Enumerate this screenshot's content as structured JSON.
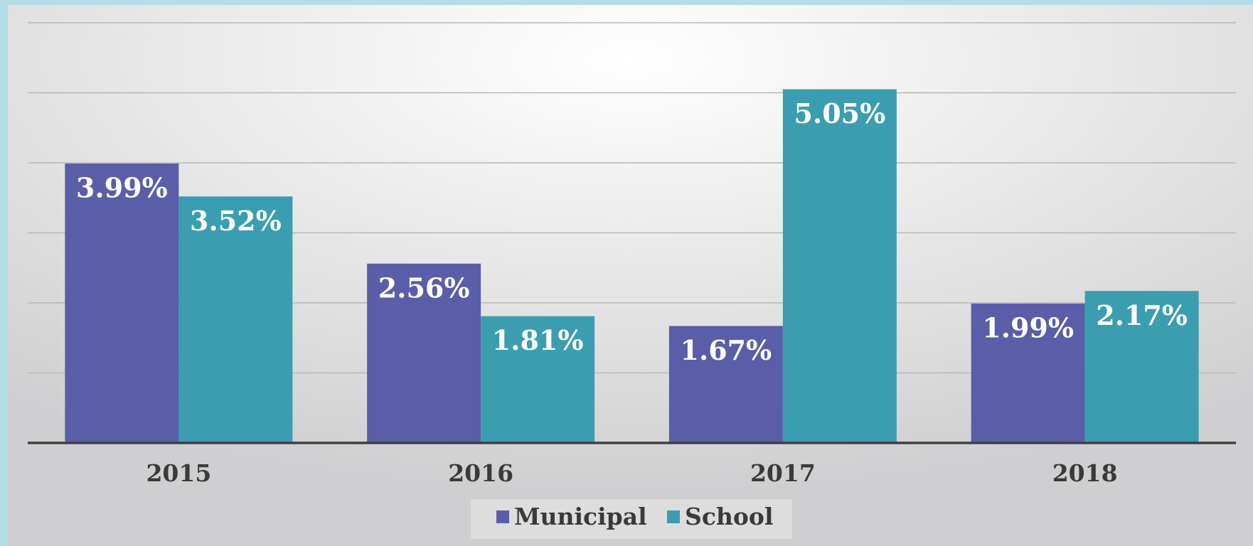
{
  "chart_data": {
    "type": "bar",
    "categories": [
      "2015",
      "2016",
      "2017",
      "2018"
    ],
    "series": [
      {
        "name": "Municipal",
        "color": "#5a5ea8",
        "values": [
          3.99,
          2.56,
          1.67,
          1.99
        ],
        "value_labels": [
          "3.99%",
          "2.56%",
          "1.67%",
          "1.99%"
        ]
      },
      {
        "name": "School",
        "color": "#3a9eb0",
        "values": [
          3.52,
          1.81,
          5.05,
          2.17
        ],
        "value_labels": [
          "3.52%",
          "1.81%",
          "5.05%",
          "2.17%"
        ]
      }
    ],
    "ylim": [
      0,
      6
    ],
    "yticks": [
      0,
      1,
      2,
      3,
      4,
      5,
      6
    ],
    "grid": true,
    "legend": "bottom"
  }
}
